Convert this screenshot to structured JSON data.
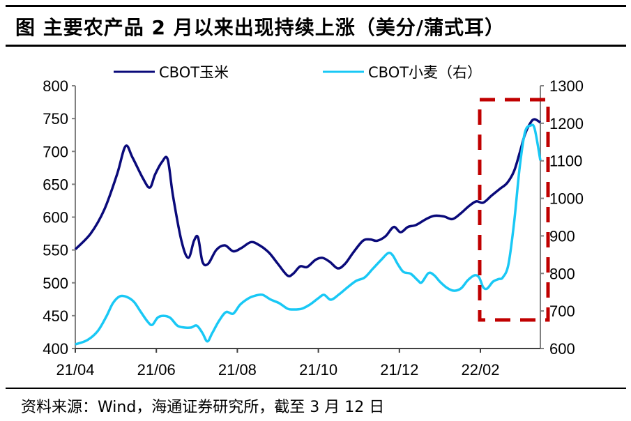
{
  "chart_data": {
    "type": "line",
    "title": "图  主要农产品 2 月以来出现持续上涨（美分/蒲式耳）",
    "source": "资料来源：Wind，海通证券研究所，截至 3 月 12 日",
    "x_unit": "months since 21/04",
    "x_ticks": [
      "21/04",
      "21/06",
      "21/08",
      "21/10",
      "21/12",
      "22/02"
    ],
    "x_tick_values": [
      0,
      2,
      4,
      6,
      8,
      10
    ],
    "xlim": [
      0,
      11.48
    ],
    "y_left": {
      "lim": [
        400,
        800
      ],
      "ticks": [
        400,
        450,
        500,
        550,
        600,
        650,
        700,
        750,
        800
      ]
    },
    "y_right": {
      "lim": [
        600,
        1300
      ],
      "ticks": [
        600,
        700,
        800,
        900,
        1000,
        1100,
        1200,
        1300
      ]
    },
    "legend_placement": "top",
    "colors": {
      "corn": "#0a0a7a",
      "wheat": "#19c8f5",
      "highlight": "#c00000"
    },
    "series": [
      {
        "name": "CBOT玉米",
        "axis": "left",
        "points": [
          [
            0,
            551
          ],
          [
            0.38,
            575
          ],
          [
            0.72,
            612
          ],
          [
            1.03,
            665
          ],
          [
            1.24,
            708
          ],
          [
            1.41,
            691
          ],
          [
            1.67,
            659
          ],
          [
            1.84,
            645
          ],
          [
            1.97,
            665
          ],
          [
            2.14,
            684
          ],
          [
            2.28,
            688
          ],
          [
            2.41,
            633
          ],
          [
            2.62,
            564
          ],
          [
            2.79,
            538
          ],
          [
            2.93,
            564
          ],
          [
            3.03,
            569
          ],
          [
            3.14,
            532
          ],
          [
            3.28,
            529
          ],
          [
            3.48,
            550
          ],
          [
            3.69,
            557
          ],
          [
            3.9,
            548
          ],
          [
            4.1,
            553
          ],
          [
            4.34,
            562
          ],
          [
            4.55,
            557
          ],
          [
            4.78,
            546
          ],
          [
            5,
            529
          ],
          [
            5.24,
            511
          ],
          [
            5.38,
            514
          ],
          [
            5.55,
            525
          ],
          [
            5.72,
            524
          ],
          [
            5.93,
            535
          ],
          [
            6.1,
            538
          ],
          [
            6.28,
            532
          ],
          [
            6.48,
            522
          ],
          [
            6.66,
            529
          ],
          [
            6.86,
            546
          ],
          [
            7.1,
            564
          ],
          [
            7.28,
            566
          ],
          [
            7.45,
            564
          ],
          [
            7.66,
            571
          ],
          [
            7.86,
            585
          ],
          [
            8.03,
            577
          ],
          [
            8.21,
            585
          ],
          [
            8.41,
            588
          ],
          [
            8.66,
            597
          ],
          [
            8.86,
            602
          ],
          [
            9.1,
            601
          ],
          [
            9.31,
            597
          ],
          [
            9.52,
            606
          ],
          [
            9.72,
            617
          ],
          [
            9.9,
            624
          ],
          [
            10.07,
            622
          ],
          [
            10.28,
            633
          ],
          [
            10.48,
            643
          ],
          [
            10.66,
            652
          ],
          [
            10.83,
            670
          ],
          [
            10.97,
            698
          ],
          [
            11.1,
            726
          ],
          [
            11.24,
            744
          ],
          [
            11.34,
            749
          ],
          [
            11.48,
            744
          ]
        ]
      },
      {
        "name": "CBOT小麦（右）",
        "axis": "right",
        "points": [
          [
            0,
            611
          ],
          [
            0.29,
            622
          ],
          [
            0.55,
            646
          ],
          [
            0.76,
            684
          ],
          [
            0.93,
            721
          ],
          [
            1.1,
            739
          ],
          [
            1.28,
            737
          ],
          [
            1.45,
            724
          ],
          [
            1.62,
            697
          ],
          [
            1.79,
            671
          ],
          [
            1.9,
            663
          ],
          [
            2.03,
            682
          ],
          [
            2.17,
            687
          ],
          [
            2.34,
            682
          ],
          [
            2.52,
            661
          ],
          [
            2.69,
            656
          ],
          [
            2.86,
            656
          ],
          [
            3,
            661
          ],
          [
            3.14,
            641
          ],
          [
            3.26,
            619
          ],
          [
            3.38,
            641
          ],
          [
            3.55,
            674
          ],
          [
            3.72,
            697
          ],
          [
            3.9,
            693
          ],
          [
            4.07,
            717
          ],
          [
            4.28,
            734
          ],
          [
            4.45,
            741
          ],
          [
            4.62,
            743
          ],
          [
            4.83,
            730
          ],
          [
            5.03,
            721
          ],
          [
            5.24,
            706
          ],
          [
            5.38,
            704
          ],
          [
            5.59,
            706
          ],
          [
            5.79,
            717
          ],
          [
            6,
            734
          ],
          [
            6.14,
            743
          ],
          [
            6.31,
            730
          ],
          [
            6.52,
            745
          ],
          [
            6.72,
            763
          ],
          [
            6.93,
            780
          ],
          [
            7.14,
            789
          ],
          [
            7.34,
            812
          ],
          [
            7.55,
            836
          ],
          [
            7.72,
            854
          ],
          [
            7.83,
            849
          ],
          [
            7.97,
            823
          ],
          [
            8.1,
            804
          ],
          [
            8.28,
            799
          ],
          [
            8.45,
            782
          ],
          [
            8.55,
            776
          ],
          [
            8.72,
            801
          ],
          [
            8.86,
            795
          ],
          [
            9,
            778
          ],
          [
            9.17,
            762
          ],
          [
            9.34,
            754
          ],
          [
            9.52,
            760
          ],
          [
            9.69,
            782
          ],
          [
            9.86,
            795
          ],
          [
            9.97,
            789
          ],
          [
            10.07,
            763
          ],
          [
            10.17,
            760
          ],
          [
            10.31,
            778
          ],
          [
            10.45,
            785
          ],
          [
            10.55,
            789
          ],
          [
            10.69,
            823
          ],
          [
            10.83,
            934
          ],
          [
            10.97,
            1083
          ],
          [
            11.1,
            1176
          ],
          [
            11.24,
            1194
          ],
          [
            11.34,
            1185
          ],
          [
            11.48,
            1101
          ]
        ]
      }
    ]
  }
}
